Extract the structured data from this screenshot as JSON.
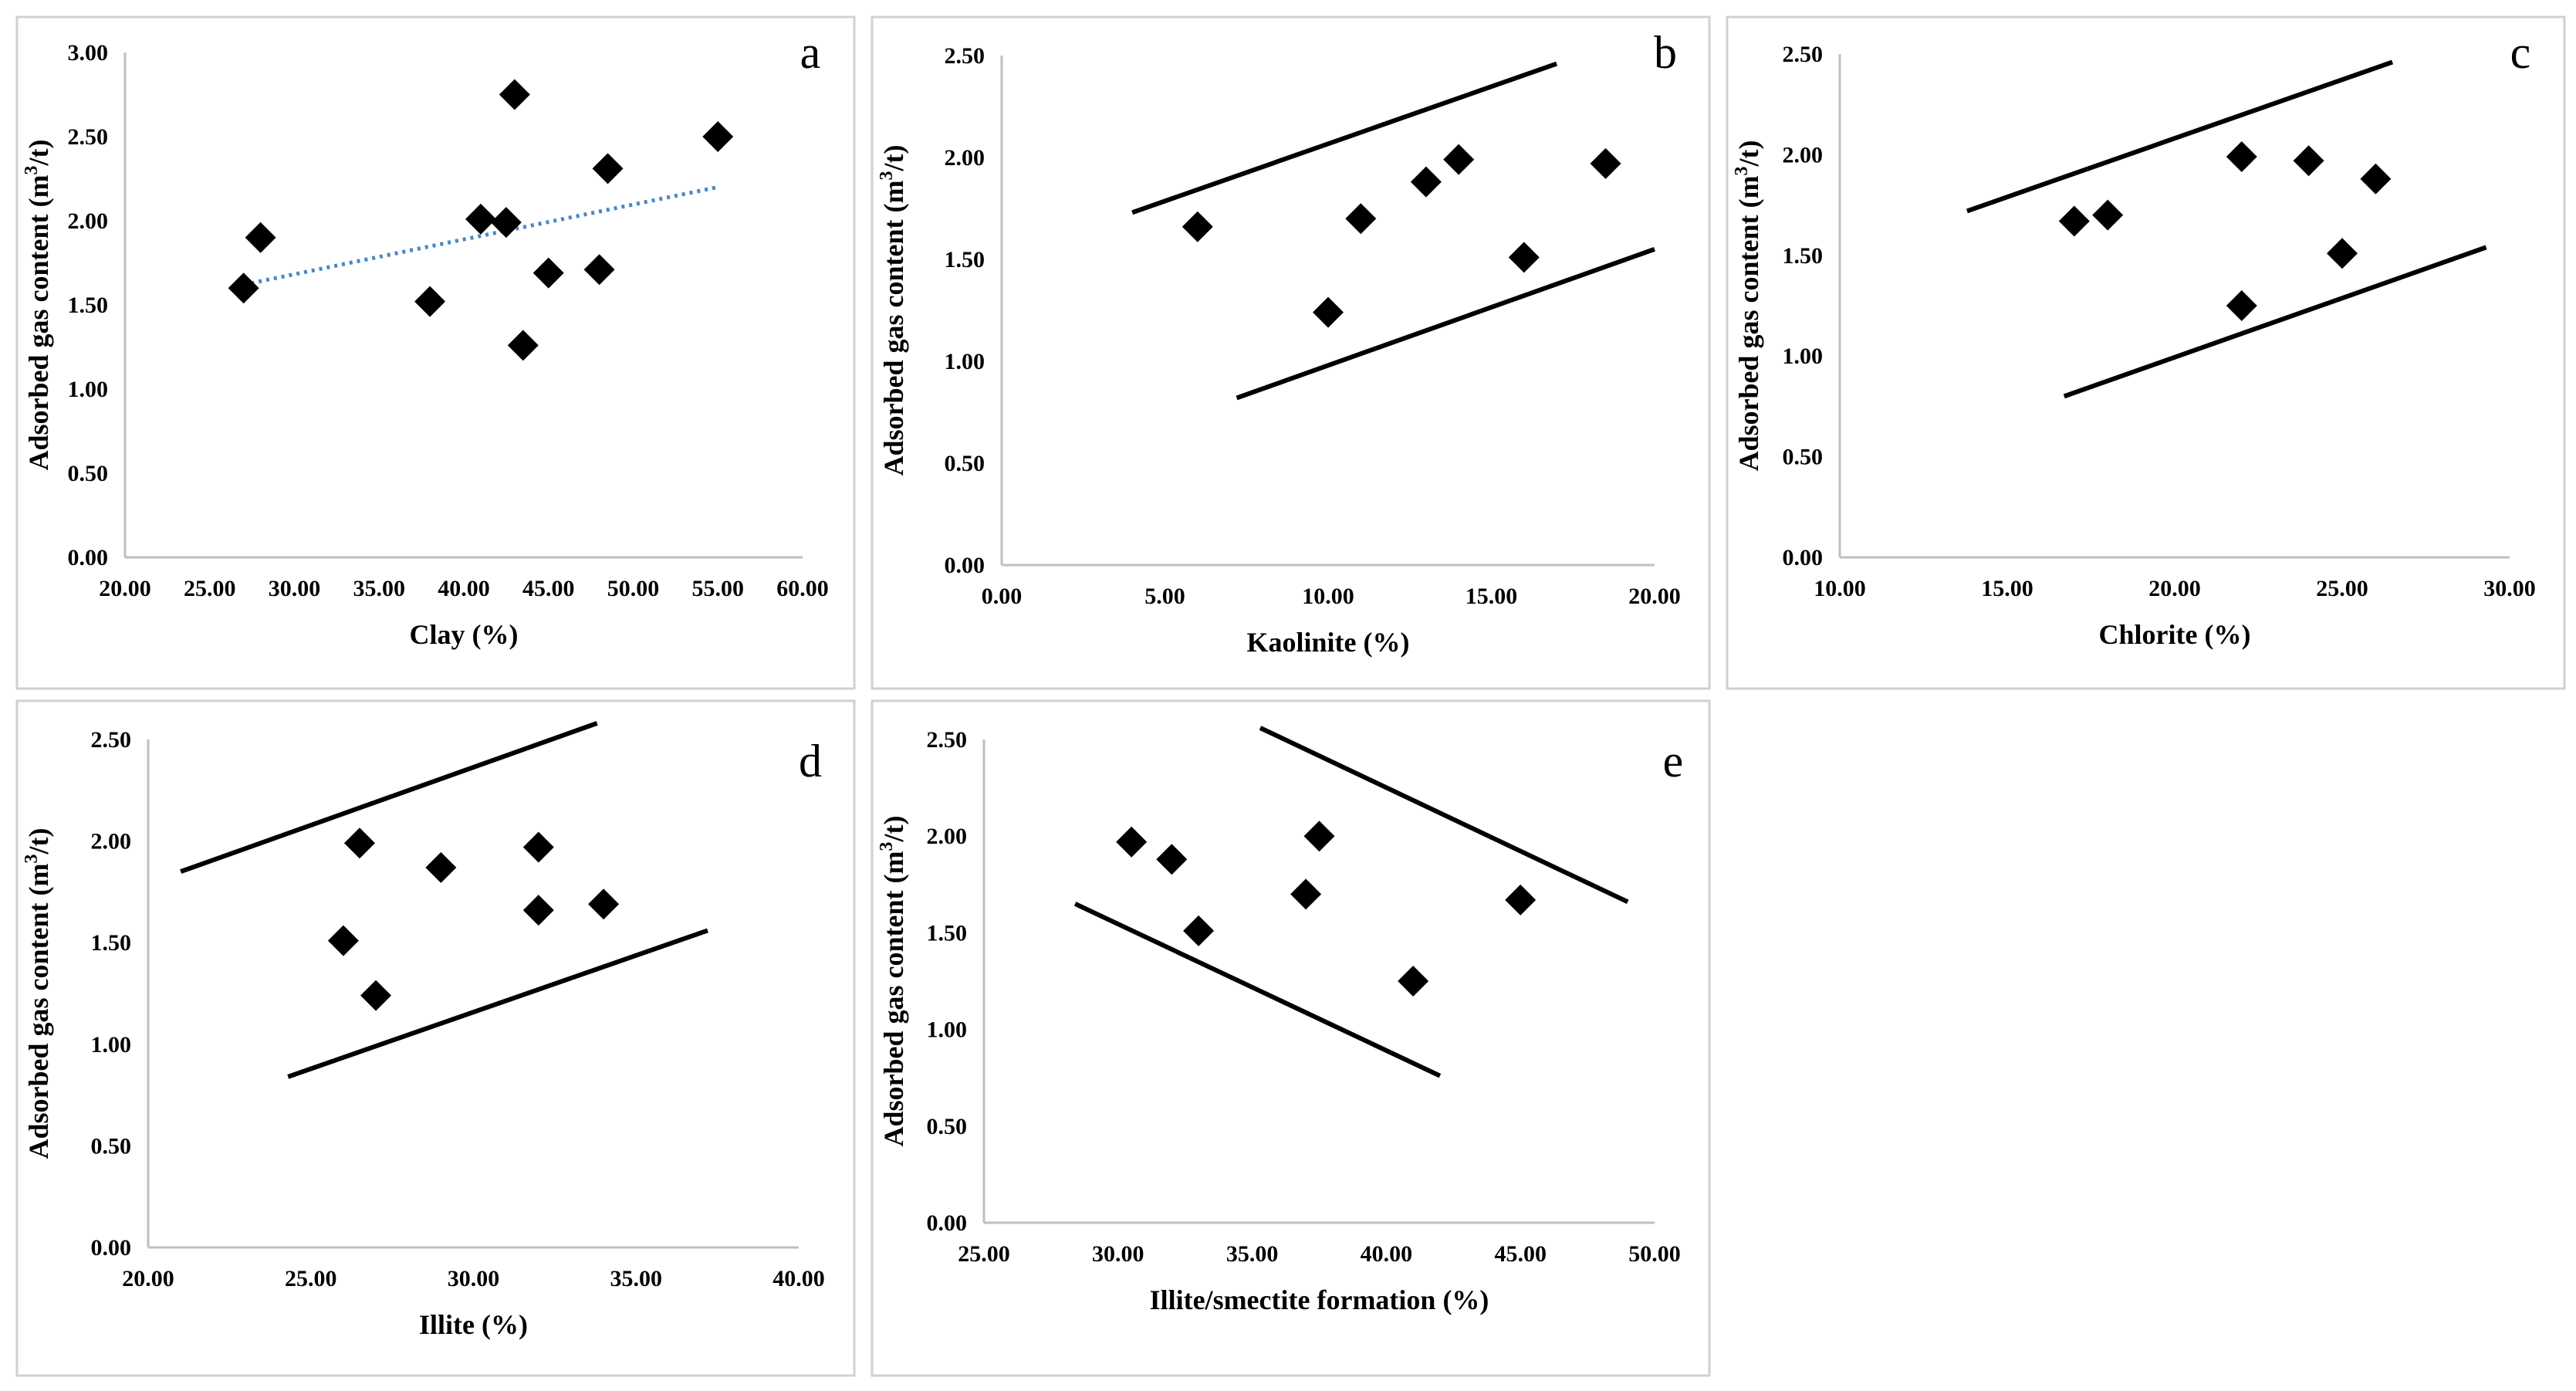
{
  "figure": {
    "ylabel_text": "Adsorbed gas content (m",
    "ylabel_sup": "3",
    "ylabel_end": "/t)"
  },
  "chart_data": [
    {
      "id": "a",
      "type": "scatter",
      "letter": "a",
      "xlabel": "Clay (%)",
      "ylabel": "Adsorbed gas content (m3/t)",
      "xlim": [
        20,
        60
      ],
      "ylim": [
        0,
        3
      ],
      "xticks": [
        "20.00",
        "25.00",
        "30.00",
        "35.00",
        "40.00",
        "45.00",
        "50.00",
        "55.00",
        "60.00"
      ],
      "yticks": [
        "0.00",
        "0.50",
        "1.00",
        "1.50",
        "2.00",
        "2.50",
        "3.00"
      ],
      "points": [
        {
          "x": 27.0,
          "y": 1.6
        },
        {
          "x": 28.0,
          "y": 1.9
        },
        {
          "x": 38.0,
          "y": 1.52
        },
        {
          "x": 41.0,
          "y": 2.01
        },
        {
          "x": 42.5,
          "y": 1.99
        },
        {
          "x": 43.0,
          "y": 2.75
        },
        {
          "x": 43.5,
          "y": 1.26
        },
        {
          "x": 45.0,
          "y": 1.69
        },
        {
          "x": 48.0,
          "y": 1.71
        },
        {
          "x": 48.5,
          "y": 2.31
        },
        {
          "x": 55.0,
          "y": 2.5
        }
      ],
      "trendline": {
        "style": "dotted",
        "color": "#4a86c8",
        "from": {
          "x": 27.0,
          "y": 1.62
        },
        "to": {
          "x": 55.0,
          "y": 2.2
        }
      },
      "bounds": []
    },
    {
      "id": "b",
      "type": "scatter",
      "letter": "b",
      "xlabel": "Kaolinite (%)",
      "ylabel": "Adsorbed gas content (m3/t)",
      "xlim": [
        0,
        20
      ],
      "ylim": [
        0,
        2.5
      ],
      "xticks": [
        "0.00",
        "5.00",
        "10.00",
        "15.00",
        "20.00"
      ],
      "yticks": [
        "0.00",
        "0.50",
        "1.00",
        "1.50",
        "2.00",
        "2.50"
      ],
      "points": [
        {
          "x": 6.0,
          "y": 1.66
        },
        {
          "x": 10.0,
          "y": 1.24
        },
        {
          "x": 11.0,
          "y": 1.7
        },
        {
          "x": 13.0,
          "y": 1.88
        },
        {
          "x": 14.0,
          "y": 1.99
        },
        {
          "x": 16.0,
          "y": 1.51
        },
        {
          "x": 18.5,
          "y": 1.97
        }
      ],
      "bounds": [
        {
          "from": {
            "x": 4.0,
            "y": 1.73
          },
          "to": {
            "x": 17.0,
            "y": 2.46
          }
        },
        {
          "from": {
            "x": 7.2,
            "y": 0.82
          },
          "to": {
            "x": 20.0,
            "y": 1.55
          }
        }
      ]
    },
    {
      "id": "c",
      "type": "scatter",
      "letter": "c",
      "xlabel": "Chlorite (%)",
      "ylabel": "Adsorbed gas content (m3/t)",
      "xlim": [
        10,
        30
      ],
      "ylim": [
        0,
        2.5
      ],
      "xticks": [
        "10.00",
        "15.00",
        "20.00",
        "25.00",
        "30.00"
      ],
      "yticks": [
        "0.00",
        "0.50",
        "1.00",
        "1.50",
        "2.00",
        "2.50"
      ],
      "points": [
        {
          "x": 17.0,
          "y": 1.67
        },
        {
          "x": 18.0,
          "y": 1.7
        },
        {
          "x": 22.0,
          "y": 1.99
        },
        {
          "x": 22.0,
          "y": 1.25
        },
        {
          "x": 24.0,
          "y": 1.97
        },
        {
          "x": 25.0,
          "y": 1.51
        },
        {
          "x": 26.0,
          "y": 1.88
        }
      ],
      "bounds": [
        {
          "from": {
            "x": 13.8,
            "y": 1.72
          },
          "to": {
            "x": 26.5,
            "y": 2.46
          }
        },
        {
          "from": {
            "x": 16.7,
            "y": 0.8
          },
          "to": {
            "x": 29.3,
            "y": 1.54
          }
        }
      ]
    },
    {
      "id": "d",
      "type": "scatter",
      "letter": "d",
      "xlabel": "Illite (%)",
      "ylabel": "Adsorbed gas content (m3/t)",
      "xlim": [
        20,
        40
      ],
      "ylim": [
        0,
        2.5
      ],
      "xticks": [
        "20.00",
        "25.00",
        "30.00",
        "35.00",
        "40.00"
      ],
      "yticks": [
        "0.00",
        "0.50",
        "1.00",
        "1.50",
        "2.00",
        "2.50"
      ],
      "points": [
        {
          "x": 26.0,
          "y": 1.51
        },
        {
          "x": 26.5,
          "y": 1.99
        },
        {
          "x": 27.0,
          "y": 1.24
        },
        {
          "x": 29.0,
          "y": 1.87
        },
        {
          "x": 32.0,
          "y": 1.97
        },
        {
          "x": 32.0,
          "y": 1.66
        },
        {
          "x": 34.0,
          "y": 1.69
        }
      ],
      "bounds": [
        {
          "from": {
            "x": 21.0,
            "y": 1.85
          },
          "to": {
            "x": 33.8,
            "y": 2.58
          }
        },
        {
          "from": {
            "x": 24.3,
            "y": 0.84
          },
          "to": {
            "x": 37.2,
            "y": 1.56
          }
        }
      ]
    },
    {
      "id": "e",
      "type": "scatter",
      "letter": "e",
      "xlabel": "Illite/smectite formation (%)",
      "ylabel": "Adsorbed gas content (m3/t)",
      "xlim": [
        25,
        50
      ],
      "ylim": [
        0,
        2.5
      ],
      "xticks": [
        "25.00",
        "30.00",
        "35.00",
        "40.00",
        "45.00",
        "50.00"
      ],
      "yticks": [
        "0.00",
        "0.50",
        "1.00",
        "1.50",
        "2.00",
        "2.50"
      ],
      "points": [
        {
          "x": 30.5,
          "y": 1.97
        },
        {
          "x": 32.0,
          "y": 1.88
        },
        {
          "x": 33.0,
          "y": 1.51
        },
        {
          "x": 37.0,
          "y": 1.7
        },
        {
          "x": 37.5,
          "y": 2.0
        },
        {
          "x": 41.0,
          "y": 1.25
        },
        {
          "x": 45.0,
          "y": 1.67
        }
      ],
      "bounds": [
        {
          "from": {
            "x": 35.3,
            "y": 2.56
          },
          "to": {
            "x": 49.0,
            "y": 1.66
          }
        },
        {
          "from": {
            "x": 28.4,
            "y": 1.65
          },
          "to": {
            "x": 42.0,
            "y": 0.76
          }
        }
      ]
    }
  ]
}
